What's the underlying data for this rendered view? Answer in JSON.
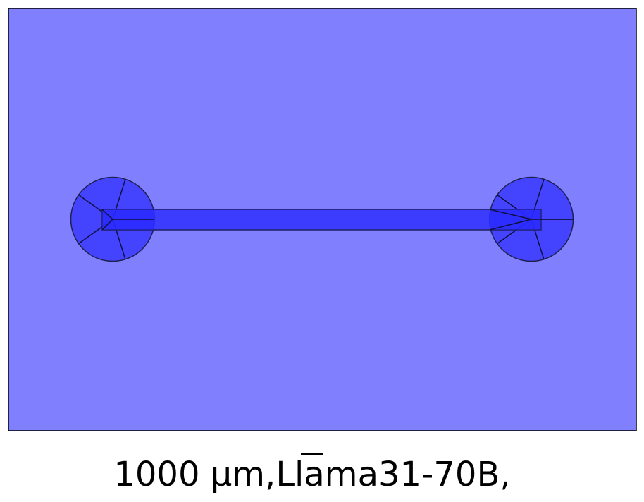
{
  "caption": "1000 μm,Llama31-70B,",
  "colors": {
    "background_field": "#8080ff",
    "channel": "#3333ff",
    "reservoir": "#4040ff",
    "overlap": "#2222ff",
    "stroke": "#000000"
  },
  "shapes": [
    "background-field",
    "left-reservoir",
    "right-reservoir",
    "channel"
  ]
}
